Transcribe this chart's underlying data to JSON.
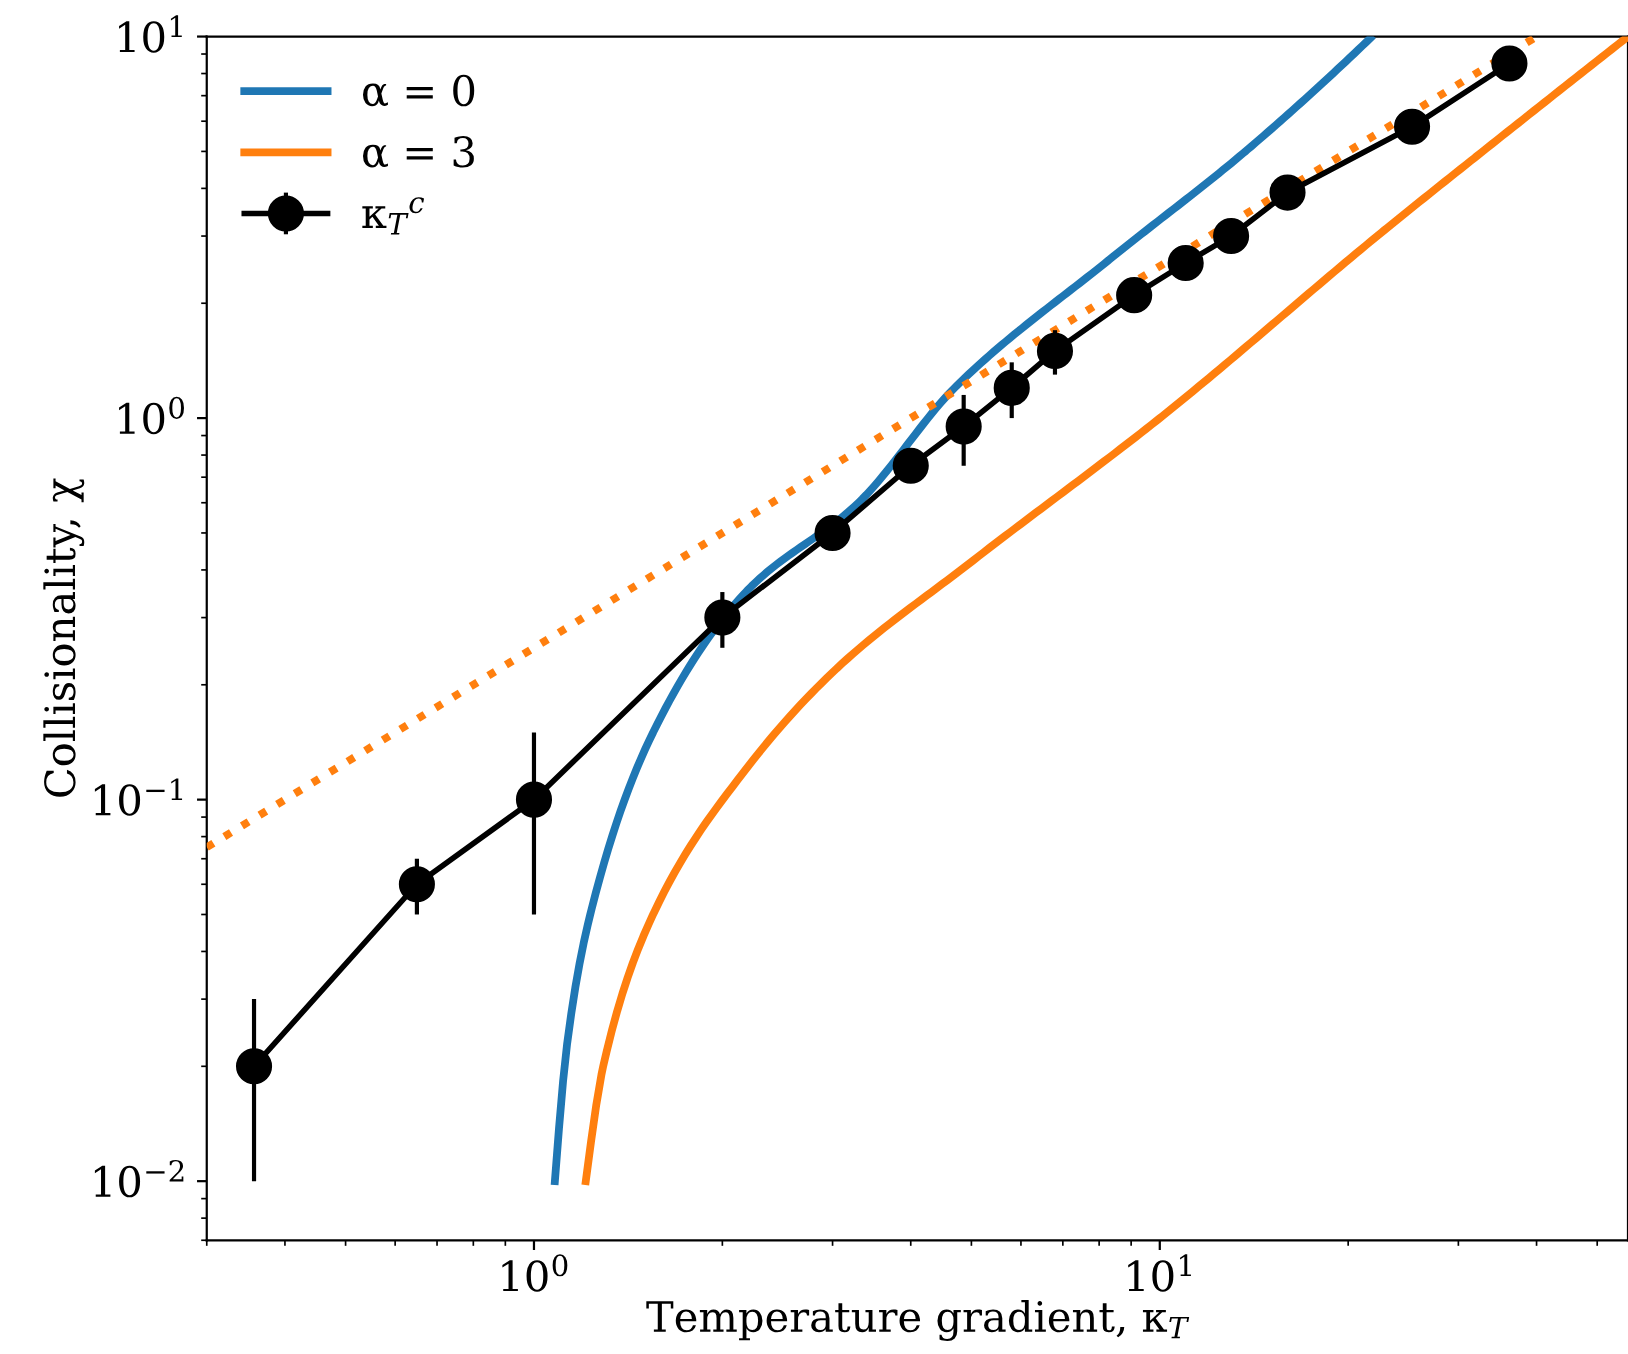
{
  "chart_data": {
    "type": "line",
    "xlabel": "Temperature gradient, κ$_{T}$",
    "ylabel": "Collisionality, χ",
    "log": "xy",
    "xlim": [
      0.3,
      56
    ],
    "ylim": [
      0.007,
      10
    ],
    "xticks": [
      {
        "value": 1,
        "label": "10$^{0}$"
      },
      {
        "value": 10,
        "label": "10$^{1}$"
      }
    ],
    "yticks": [
      {
        "value": 0.01,
        "label": "10$^{−2}$"
      },
      {
        "value": 0.1,
        "label": "10$^{−1}$"
      },
      {
        "value": 1,
        "label": "10$^{0}$"
      },
      {
        "value": 10,
        "label": "10$^{1}$"
      }
    ],
    "legend": "top left",
    "grid": false,
    "series": [
      {
        "name": "α = 0",
        "color": "#1f77b4",
        "marker": "none",
        "x": [
          1.08,
          1.13,
          1.23,
          1.55,
          2.18,
          3.3,
          4.7,
          8.3,
          13.7,
          21.7
        ],
        "values": [
          0.01,
          0.023,
          0.05,
          0.15,
          0.35,
          0.6,
          1.2,
          2.6,
          5.0,
          9.9
        ]
      },
      {
        "name": "α = 3",
        "color": "#ff7f0e",
        "marker": "none",
        "x": [
          1.21,
          1.29,
          1.55,
          2.18,
          3.04,
          5.0,
          10,
          22.8,
          31.8,
          56
        ],
        "values": [
          0.01,
          0.02,
          0.05,
          0.12,
          0.22,
          0.42,
          1.0,
          3.1,
          4.8,
          10
        ]
      },
      {
        "name": "κ$_{T}$$^{c}$",
        "color": "#000000",
        "marker": "circle",
        "x": [
          0.357,
          0.65,
          1,
          2,
          3,
          4,
          4.86,
          5.8,
          6.8,
          9.1,
          11,
          13,
          16,
          25.3,
          36.2
        ],
        "values": [
          0.02,
          0.06,
          0.1,
          0.3,
          0.5,
          0.75,
          0.95,
          1.2,
          1.5,
          2.1,
          2.55,
          3.0,
          3.9,
          5.8,
          8.5
        ],
        "errors": [
          [
            0.01,
            0.03
          ],
          [
            0.05,
            0.07
          ],
          [
            0.05,
            0.15
          ],
          [
            0.25,
            0.35
          ],
          null,
          null,
          [
            0.75,
            1.15
          ],
          [
            1.0,
            1.4
          ],
          [
            1.3,
            1.7
          ],
          null,
          null,
          null,
          null,
          null,
          null
        ]
      },
      {
        "color": "#ff7f0e",
        "marker": "none",
        "line_style": "dotted",
        "x": [
          0.3,
          40
        ],
        "values": [
          0.075,
          10
        ]
      }
    ]
  }
}
